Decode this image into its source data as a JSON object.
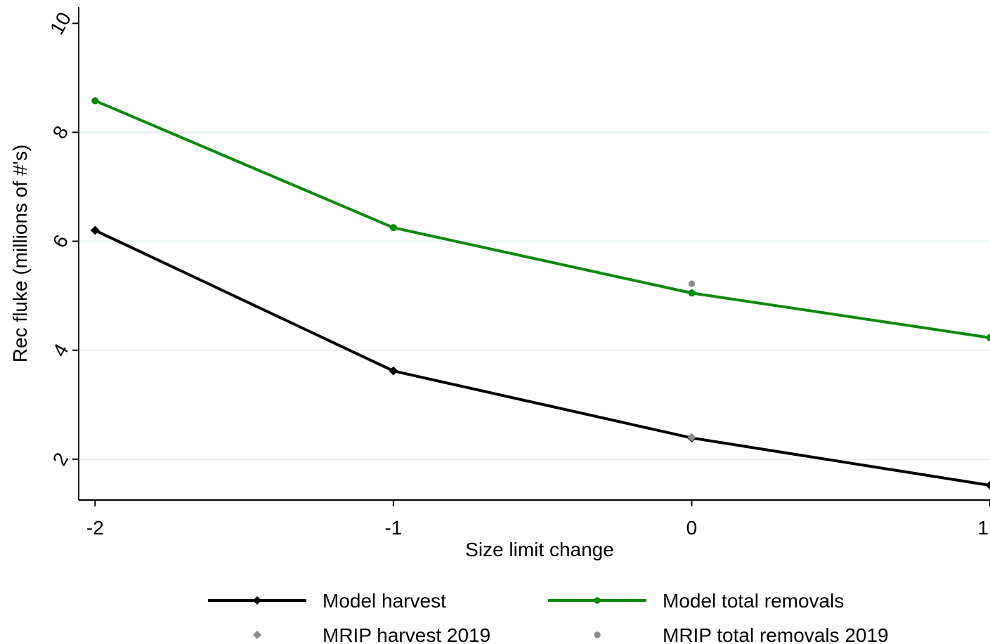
{
  "chart_data": {
    "type": "line",
    "title": "",
    "xlabel": "Size limit change",
    "ylabel": "Rec fluke (millions of #'s)",
    "x": [
      -2,
      -1,
      0,
      1
    ],
    "xticks": [
      -2,
      -1,
      0,
      1
    ],
    "xtick_labels": [
      "-2",
      "-1",
      "0",
      "1"
    ],
    "yticks": [
      2,
      4,
      6,
      8,
      10
    ],
    "ytick_labels": [
      "2",
      "4",
      "6",
      "8",
      "10"
    ],
    "xlim": [
      -2.055,
      1.0
    ],
    "ylim": [
      1.25,
      10.3
    ],
    "grid": true,
    "legend_position": "bottom",
    "series": [
      {
        "name": "Model harvest",
        "kind": "line",
        "marker": "diamond",
        "color": "#000000",
        "x": [
          -2,
          -1,
          0,
          1
        ],
        "values": [
          6.2,
          3.62,
          2.39,
          1.52
        ]
      },
      {
        "name": "Model total removals",
        "kind": "line",
        "marker": "circle",
        "color": "#0a8a0a",
        "x": [
          -2,
          -1,
          0,
          1
        ],
        "values": [
          8.58,
          6.25,
          5.05,
          4.23
        ]
      },
      {
        "name": "MRIP harvest 2019",
        "kind": "scatter",
        "marker": "diamond",
        "color": "#8c8c8c",
        "x": [
          0
        ],
        "values": [
          2.4
        ]
      },
      {
        "name": "MRIP total removals 2019",
        "kind": "scatter",
        "marker": "circle",
        "color": "#8c8c8c",
        "x": [
          0
        ],
        "values": [
          5.22
        ]
      }
    ]
  }
}
